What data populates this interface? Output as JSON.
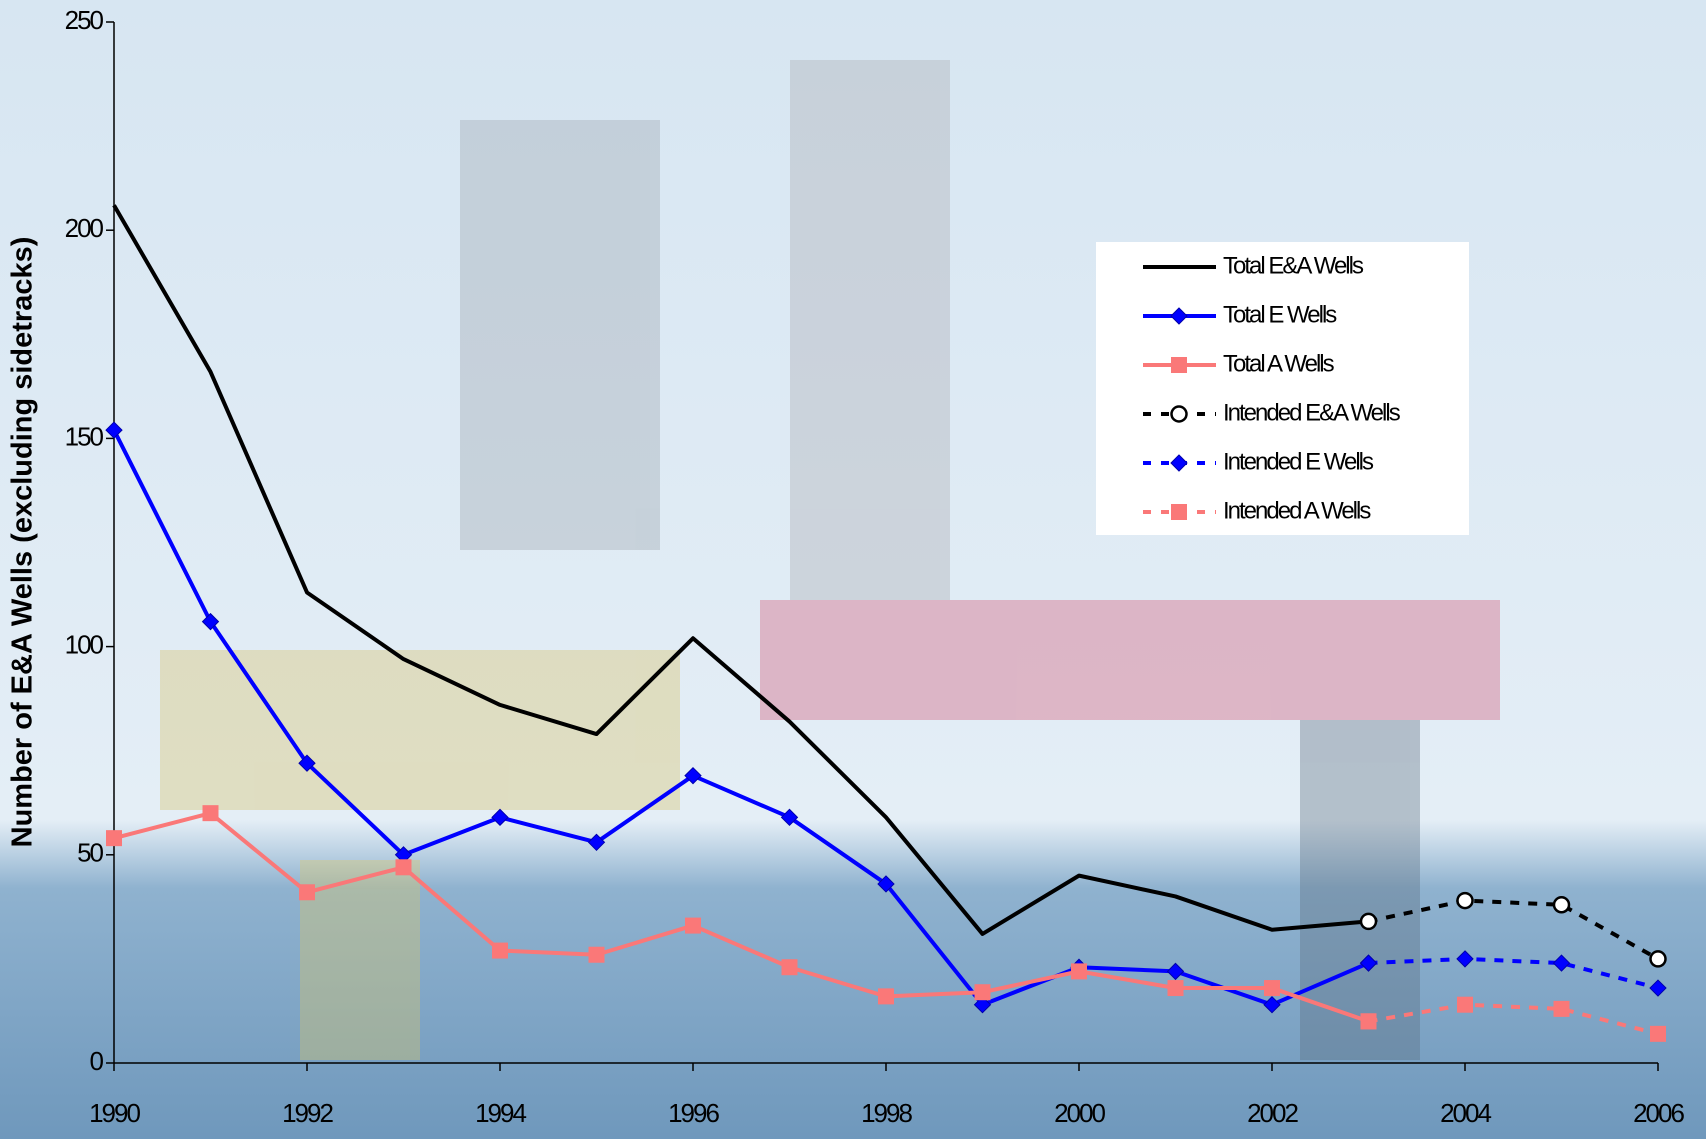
{
  "chart_data": {
    "type": "line",
    "y_label": "Number of E&A Wells (excluding sidetracks)",
    "x": [
      1990,
      1991,
      1992,
      1993,
      1994,
      1995,
      1996,
      1997,
      1998,
      1999,
      2000,
      2001,
      2002,
      2003,
      2004,
      2005,
      2006
    ],
    "xlim": [
      1990,
      2006
    ],
    "xticks": [
      1990,
      1992,
      1994,
      1996,
      1998,
      2000,
      2002,
      2004,
      2006
    ],
    "ylim": [
      0,
      250
    ],
    "yticks": [
      0,
      50,
      100,
      150,
      200,
      250
    ],
    "legend": "upper right",
    "series": [
      {
        "name": "Total E&A Wells",
        "color": "#000000",
        "dash": "solid",
        "marker": "none",
        "values": [
          206,
          166,
          113,
          97,
          86,
          79,
          102,
          82,
          59,
          31,
          45,
          40,
          32,
          34,
          null,
          null,
          null
        ]
      },
      {
        "name": "Total E Wells",
        "color": "#0000ff",
        "dash": "solid",
        "marker": "diamond",
        "values": [
          152,
          106,
          72,
          50,
          59,
          53,
          69,
          59,
          43,
          14,
          23,
          22,
          14,
          24,
          null,
          null,
          null
        ]
      },
      {
        "name": "Total A Wells",
        "color": "#fa7878",
        "dash": "solid",
        "marker": "square",
        "values": [
          54,
          60,
          41,
          47,
          27,
          26,
          33,
          23,
          16,
          17,
          22,
          18,
          18,
          10,
          null,
          null,
          null
        ]
      },
      {
        "name": "Intended E&A Wells",
        "color": "#000000",
        "dash": "dotted",
        "marker": "circle",
        "values": [
          null,
          null,
          null,
          null,
          null,
          null,
          null,
          null,
          null,
          null,
          null,
          null,
          null,
          34,
          39,
          38,
          25
        ]
      },
      {
        "name": "Intended E Wells",
        "color": "#0000ff",
        "dash": "dotted",
        "marker": "diamond",
        "values": [
          null,
          null,
          null,
          null,
          null,
          null,
          null,
          null,
          null,
          null,
          null,
          null,
          null,
          24,
          25,
          24,
          18
        ]
      },
      {
        "name": "Intended A Wells",
        "color": "#fa7878",
        "dash": "dotted",
        "marker": "square",
        "values": [
          null,
          null,
          null,
          null,
          null,
          null,
          null,
          null,
          null,
          null,
          null,
          null,
          null,
          10,
          14,
          13,
          7
        ]
      }
    ]
  }
}
